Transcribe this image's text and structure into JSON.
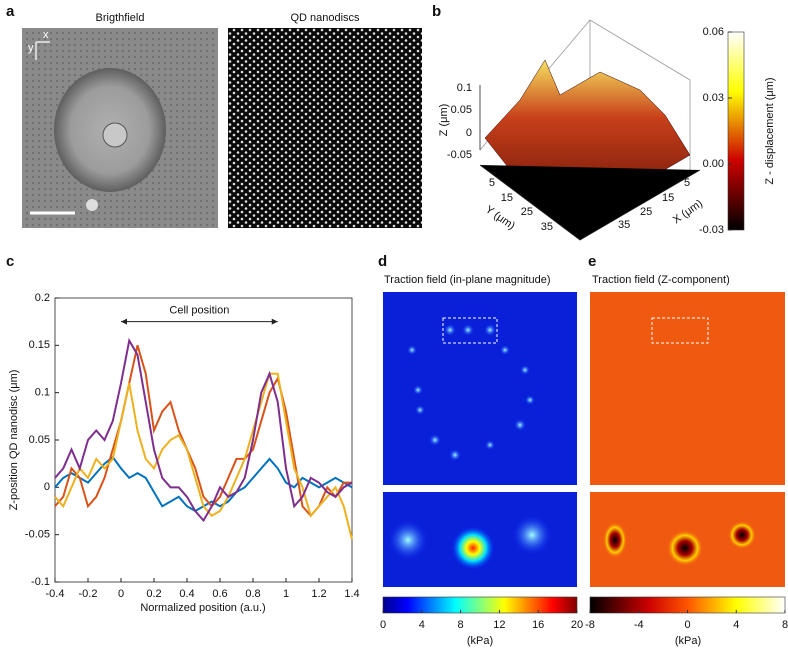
{
  "panels": {
    "a": {
      "letter": "a",
      "brightfield_title": "Brigthfield",
      "qd_title": "QD nanodiscs",
      "axis_x": "x",
      "axis_y": "y"
    },
    "b": {
      "letter": "b",
      "z_label": "Z (μm)",
      "y_label": "Y (μm)",
      "x_label": "X (μm)",
      "z_ticks": [
        0.1,
        0.05,
        0,
        -0.05
      ],
      "y_ticks": [
        5,
        15,
        25,
        35
      ],
      "x_ticks": [
        5,
        15,
        25,
        35
      ],
      "colorbar": {
        "label": "Z - displacement (μm)",
        "clim": [
          -0.03,
          0.06
        ],
        "ticks": [
          0.06,
          0.03,
          {
            "value": 0,
            "label": "0.00"
          },
          -0.03
        ]
      }
    },
    "c": {
      "letter": "c"
    },
    "d": {
      "letter": "d",
      "title": "Traction field (in-plane magnitude)",
      "colorbar": {
        "label": "(kPa)",
        "clim": [
          0,
          20
        ],
        "ticks": [
          0,
          4,
          8,
          12,
          16,
          20
        ]
      }
    },
    "e": {
      "letter": "e",
      "title": "Traction field (Z-component)",
      "colorbar": {
        "label": "(kPa)",
        "clim": [
          -8,
          8
        ],
        "ticks": [
          -8,
          -4,
          0,
          4,
          8
        ]
      }
    }
  },
  "chart_data": {
    "type": "line",
    "x_label": "Normalized position (a.u.)",
    "y_label": "Z-position QD nanodisc (μm)",
    "annotation": {
      "text": "Cell position",
      "x_range": [
        0,
        0.95
      ],
      "y": 0.175
    },
    "x": [
      -0.4,
      -0.35,
      -0.3,
      -0.25,
      -0.2,
      -0.15,
      -0.1,
      -0.05,
      0,
      0.05,
      0.1,
      0.15,
      0.2,
      0.25,
      0.3,
      0.35,
      0.4,
      0.45,
      0.5,
      0.55,
      0.6,
      0.65,
      0.7,
      0.75,
      0.8,
      0.85,
      0.9,
      0.95,
      1.0,
      1.05,
      1.1,
      1.15,
      1.2,
      1.25,
      1.3,
      1.35,
      1.4
    ],
    "series": [
      {
        "color": "#0072bd",
        "values": [
          0,
          0.01,
          0.015,
          0.01,
          0.005,
          0.015,
          0.025,
          0.032,
          0.02,
          0.01,
          0.015,
          0.01,
          -0.005,
          -0.02,
          -0.015,
          -0.01,
          -0.02,
          -0.025,
          -0.02,
          -0.015,
          -0.02,
          -0.015,
          -0.005,
          0,
          0.01,
          0.02,
          0.03,
          0.02,
          0.005,
          0,
          0.01,
          0.005,
          0,
          0.005,
          0.01,
          0.005,
          0
        ]
      },
      {
        "color": "#d95319",
        "values": [
          -0.02,
          -0.01,
          0.02,
          0.01,
          -0.02,
          -0.01,
          0.01,
          0.04,
          0.07,
          0.11,
          0.15,
          0.12,
          0.06,
          0.08,
          0.09,
          0.06,
          0.04,
          0.02,
          -0.01,
          -0.02,
          -0.01,
          0.01,
          0.03,
          0.03,
          0.04,
          0.07,
          0.1,
          0.115,
          0.08,
          0.03,
          -0.02,
          -0.03,
          -0.02,
          0,
          -0.01,
          0.005,
          0.005
        ]
      },
      {
        "color": "#edb120",
        "values": [
          -0.01,
          -0.02,
          0,
          0.02,
          0.01,
          0.03,
          0.02,
          0.03,
          0.07,
          0.11,
          0.06,
          0.03,
          0.02,
          0.04,
          0.05,
          0.055,
          0.04,
          0.01,
          -0.02,
          -0.03,
          -0.025,
          -0.01,
          0.01,
          0.03,
          0.06,
          0.09,
          0.12,
          0.12,
          0.07,
          0.02,
          0,
          -0.03,
          -0.02,
          -0.01,
          0,
          -0.02,
          -0.055
        ]
      },
      {
        "color": "#7e2f8e",
        "values": [
          0.01,
          0.02,
          0.04,
          0.02,
          0.05,
          0.06,
          0.05,
          0.07,
          0.11,
          0.155,
          0.14,
          0.09,
          0.04,
          0.01,
          0,
          0,
          -0.01,
          -0.025,
          -0.035,
          -0.02,
          0,
          -0.01,
          -0.005,
          0.01,
          0.05,
          0.1,
          0.12,
          0.09,
          0.02,
          -0.02,
          -0.01,
          0.01,
          0.005,
          -0.005,
          -0.01,
          0,
          0.005
        ]
      }
    ],
    "xlim": [
      -0.4,
      1.4
    ],
    "ylim": [
      -0.1,
      0.2
    ],
    "xticks": [
      -0.4,
      -0.2,
      0,
      0.2,
      0.4,
      0.6,
      0.8,
      1,
      1.2,
      1.4
    ],
    "yticks": [
      -0.1,
      -0.05,
      0,
      0.05,
      0.1,
      0.15,
      0.2
    ]
  }
}
